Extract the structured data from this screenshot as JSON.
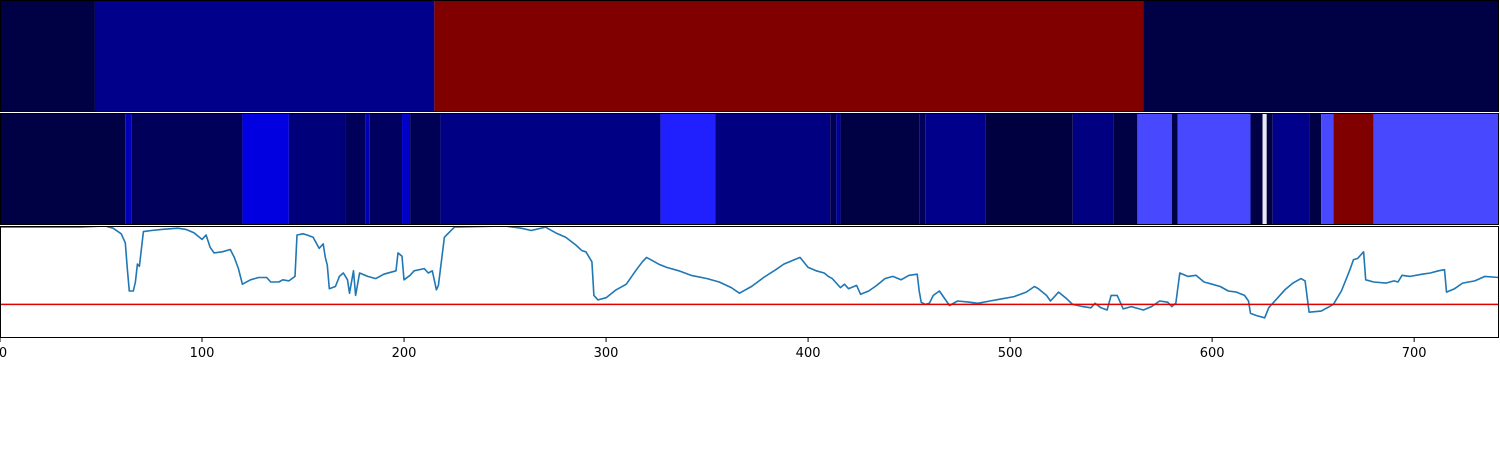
{
  "chart_data": [
    {
      "type": "heatmap",
      "xlim": [
        0,
        742
      ],
      "segments": [
        {
          "x0": 0,
          "x1": 47,
          "color": "#000045"
        },
        {
          "x0": 47,
          "x1": 215,
          "color": "#00008b"
        },
        {
          "x0": 215,
          "x1": 566,
          "color": "#800000"
        },
        {
          "x0": 566,
          "x1": 742,
          "color": "#000045"
        }
      ]
    },
    {
      "type": "heatmap",
      "xlim": [
        0,
        742
      ],
      "segments": [
        {
          "x0": 0,
          "x1": 62,
          "color": "#000045"
        },
        {
          "x0": 62,
          "x1": 65,
          "color": "#0000b8"
        },
        {
          "x0": 65,
          "x1": 120,
          "color": "#00005a"
        },
        {
          "x0": 120,
          "x1": 143,
          "color": "#0000e0"
        },
        {
          "x0": 143,
          "x1": 171,
          "color": "#00007a"
        },
        {
          "x0": 171,
          "x1": 181,
          "color": "#00005a"
        },
        {
          "x0": 181,
          "x1": 183,
          "color": "#0000b8"
        },
        {
          "x0": 183,
          "x1": 199,
          "color": "#000060"
        },
        {
          "x0": 199,
          "x1": 203,
          "color": "#0000c8"
        },
        {
          "x0": 203,
          "x1": 218,
          "color": "#000055"
        },
        {
          "x0": 218,
          "x1": 327,
          "color": "#000085"
        },
        {
          "x0": 327,
          "x1": 354,
          "color": "#2020ff"
        },
        {
          "x0": 354,
          "x1": 411,
          "color": "#000080"
        },
        {
          "x0": 411,
          "x1": 414,
          "color": "#000050"
        },
        {
          "x0": 414,
          "x1": 416,
          "color": "#0000a0"
        },
        {
          "x0": 416,
          "x1": 455,
          "color": "#000045"
        },
        {
          "x0": 455,
          "x1": 458,
          "color": "#00005a"
        },
        {
          "x0": 458,
          "x1": 488,
          "color": "#00008b"
        },
        {
          "x0": 488,
          "x1": 531,
          "color": "#000040"
        },
        {
          "x0": 531,
          "x1": 551,
          "color": "#000080"
        },
        {
          "x0": 551,
          "x1": 563,
          "color": "#000045"
        },
        {
          "x0": 563,
          "x1": 580,
          "color": "#4848ff"
        },
        {
          "x0": 580,
          "x1": 583,
          "color": "#000045"
        },
        {
          "x0": 583,
          "x1": 619,
          "color": "#4848ff"
        },
        {
          "x0": 619,
          "x1": 625,
          "color": "#000045"
        },
        {
          "x0": 625,
          "x1": 627,
          "color": "#e8e8f8"
        },
        {
          "x0": 627,
          "x1": 630,
          "color": "#000045"
        },
        {
          "x0": 630,
          "x1": 648,
          "color": "#00008b"
        },
        {
          "x0": 648,
          "x1": 654,
          "color": "#000045"
        },
        {
          "x0": 654,
          "x1": 660,
          "color": "#4848ff"
        },
        {
          "x0": 660,
          "x1": 680,
          "color": "#800000"
        },
        {
          "x0": 680,
          "x1": 742,
          "color": "#4848ff"
        }
      ]
    },
    {
      "type": "line",
      "xlim": [
        0,
        742
      ],
      "ylim": [
        0,
        1
      ],
      "xticks": [
        0,
        100,
        200,
        300,
        400,
        500,
        600,
        700
      ],
      "series_color": "#1f77b4",
      "threshold": 0.3,
      "threshold_color": "#e00000",
      "points": [
        [
          0,
          0.99
        ],
        [
          20,
          0.99
        ],
        [
          40,
          0.99
        ],
        [
          52,
          1.0
        ],
        [
          56,
          0.98
        ],
        [
          60,
          0.93
        ],
        [
          62,
          0.85
        ],
        [
          63,
          0.62
        ],
        [
          64,
          0.42
        ],
        [
          66,
          0.42
        ],
        [
          67,
          0.5
        ],
        [
          68,
          0.66
        ],
        [
          69,
          0.64
        ],
        [
          71,
          0.95
        ],
        [
          75,
          0.96
        ],
        [
          80,
          0.97
        ],
        [
          88,
          0.98
        ],
        [
          92,
          0.97
        ],
        [
          96,
          0.94
        ],
        [
          100,
          0.88
        ],
        [
          102,
          0.92
        ],
        [
          104,
          0.81
        ],
        [
          106,
          0.76
        ],
        [
          110,
          0.77
        ],
        [
          114,
          0.79
        ],
        [
          116,
          0.72
        ],
        [
          118,
          0.62
        ],
        [
          120,
          0.48
        ],
        [
          124,
          0.52
        ],
        [
          128,
          0.54
        ],
        [
          132,
          0.54
        ],
        [
          134,
          0.5
        ],
        [
          138,
          0.5
        ],
        [
          140,
          0.52
        ],
        [
          143,
          0.51
        ],
        [
          146,
          0.55
        ],
        [
          147,
          0.92
        ],
        [
          150,
          0.93
        ],
        [
          152,
          0.92
        ],
        [
          155,
          0.9
        ],
        [
          158,
          0.8
        ],
        [
          160,
          0.84
        ],
        [
          161,
          0.72
        ],
        [
          162,
          0.65
        ],
        [
          163,
          0.44
        ],
        [
          166,
          0.46
        ],
        [
          168,
          0.55
        ],
        [
          170,
          0.58
        ],
        [
          172,
          0.52
        ],
        [
          173,
          0.4
        ],
        [
          175,
          0.6
        ],
        [
          176,
          0.38
        ],
        [
          178,
          0.58
        ],
        [
          182,
          0.55
        ],
        [
          186,
          0.53
        ],
        [
          190,
          0.57
        ],
        [
          196,
          0.6
        ],
        [
          197,
          0.76
        ],
        [
          199,
          0.73
        ],
        [
          200,
          0.52
        ],
        [
          203,
          0.56
        ],
        [
          205,
          0.6
        ],
        [
          210,
          0.62
        ],
        [
          212,
          0.58
        ],
        [
          214,
          0.6
        ],
        [
          216,
          0.43
        ],
        [
          217,
          0.47
        ],
        [
          220,
          0.9
        ],
        [
          225,
          0.99
        ],
        [
          250,
          1.0
        ],
        [
          258,
          0.98
        ],
        [
          263,
          0.96
        ],
        [
          270,
          0.99
        ],
        [
          272,
          0.97
        ],
        [
          276,
          0.93
        ],
        [
          280,
          0.9
        ],
        [
          285,
          0.83
        ],
        [
          288,
          0.78
        ],
        [
          290,
          0.77
        ],
        [
          293,
          0.68
        ],
        [
          294,
          0.38
        ],
        [
          296,
          0.34
        ],
        [
          300,
          0.36
        ],
        [
          305,
          0.43
        ],
        [
          310,
          0.48
        ],
        [
          315,
          0.61
        ],
        [
          318,
          0.68
        ],
        [
          320,
          0.72
        ],
        [
          322,
          0.7
        ],
        [
          326,
          0.66
        ],
        [
          330,
          0.63
        ],
        [
          336,
          0.6
        ],
        [
          342,
          0.56
        ],
        [
          350,
          0.53
        ],
        [
          356,
          0.5
        ],
        [
          362,
          0.45
        ],
        [
          366,
          0.4
        ],
        [
          372,
          0.46
        ],
        [
          378,
          0.54
        ],
        [
          384,
          0.61
        ],
        [
          388,
          0.66
        ],
        [
          392,
          0.69
        ],
        [
          396,
          0.72
        ],
        [
          400,
          0.63
        ],
        [
          404,
          0.6
        ],
        [
          408,
          0.58
        ],
        [
          410,
          0.55
        ],
        [
          412,
          0.53
        ],
        [
          416,
          0.45
        ],
        [
          418,
          0.48
        ],
        [
          420,
          0.44
        ],
        [
          424,
          0.47
        ],
        [
          426,
          0.39
        ],
        [
          430,
          0.42
        ],
        [
          434,
          0.47
        ],
        [
          438,
          0.53
        ],
        [
          442,
          0.55
        ],
        [
          446,
          0.52
        ],
        [
          450,
          0.56
        ],
        [
          454,
          0.57
        ],
        [
          455,
          0.42
        ],
        [
          456,
          0.32
        ],
        [
          458,
          0.3
        ],
        [
          460,
          0.31
        ],
        [
          462,
          0.38
        ],
        [
          465,
          0.42
        ],
        [
          470,
          0.29
        ],
        [
          474,
          0.33
        ],
        [
          480,
          0.32
        ],
        [
          484,
          0.31
        ],
        [
          490,
          0.33
        ],
        [
          496,
          0.35
        ],
        [
          502,
          0.37
        ],
        [
          508,
          0.41
        ],
        [
          512,
          0.46
        ],
        [
          514,
          0.44
        ],
        [
          518,
          0.38
        ],
        [
          520,
          0.33
        ],
        [
          524,
          0.41
        ],
        [
          528,
          0.35
        ],
        [
          531,
          0.3
        ],
        [
          536,
          0.28
        ],
        [
          540,
          0.27
        ],
        [
          542,
          0.31
        ],
        [
          545,
          0.27
        ],
        [
          548,
          0.25
        ],
        [
          550,
          0.38
        ],
        [
          553,
          0.38
        ],
        [
          556,
          0.26
        ],
        [
          560,
          0.28
        ],
        [
          566,
          0.25
        ],
        [
          570,
          0.28
        ],
        [
          574,
          0.33
        ],
        [
          578,
          0.32
        ],
        [
          580,
          0.28
        ],
        [
          582,
          0.31
        ],
        [
          584,
          0.58
        ],
        [
          588,
          0.55
        ],
        [
          592,
          0.56
        ],
        [
          596,
          0.5
        ],
        [
          600,
          0.48
        ],
        [
          604,
          0.46
        ],
        [
          608,
          0.42
        ],
        [
          612,
          0.41
        ],
        [
          616,
          0.38
        ],
        [
          618,
          0.33
        ],
        [
          619,
          0.22
        ],
        [
          622,
          0.2
        ],
        [
          626,
          0.18
        ],
        [
          628,
          0.27
        ],
        [
          632,
          0.35
        ],
        [
          636,
          0.43
        ],
        [
          640,
          0.49
        ],
        [
          644,
          0.53
        ],
        [
          646,
          0.51
        ],
        [
          648,
          0.23
        ],
        [
          654,
          0.24
        ],
        [
          660,
          0.3
        ],
        [
          664,
          0.42
        ],
        [
          668,
          0.6
        ],
        [
          670,
          0.7
        ],
        [
          672,
          0.71
        ],
        [
          675,
          0.77
        ],
        [
          676,
          0.52
        ],
        [
          680,
          0.5
        ],
        [
          686,
          0.49
        ],
        [
          690,
          0.51
        ],
        [
          692,
          0.5
        ],
        [
          694,
          0.56
        ],
        [
          698,
          0.55
        ],
        [
          704,
          0.57
        ],
        [
          708,
          0.58
        ],
        [
          712,
          0.6
        ],
        [
          715,
          0.61
        ],
        [
          716,
          0.41
        ],
        [
          720,
          0.44
        ],
        [
          724,
          0.49
        ],
        [
          730,
          0.51
        ],
        [
          735,
          0.55
        ],
        [
          742,
          0.54
        ]
      ]
    }
  ]
}
